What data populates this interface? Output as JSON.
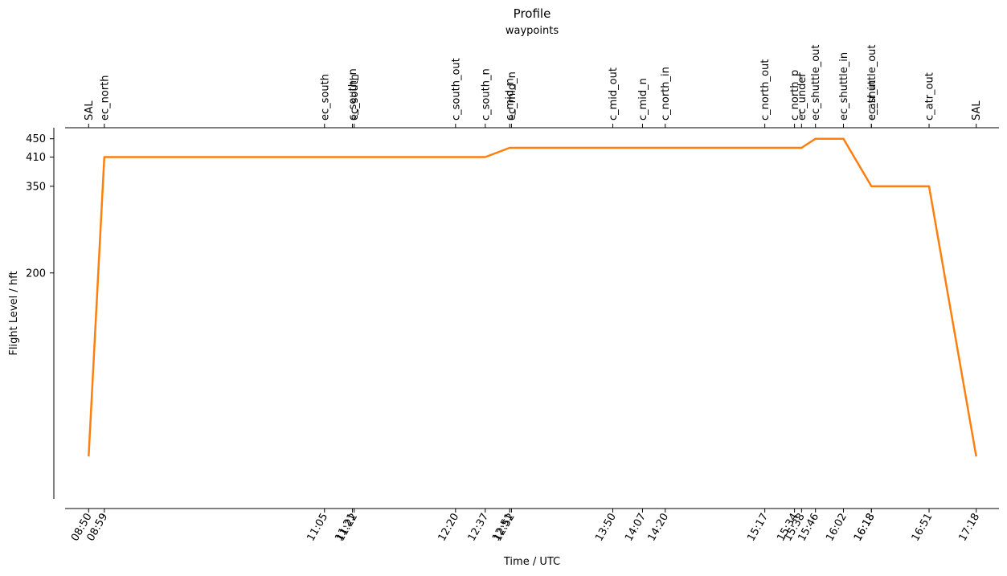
{
  "chart_data": {
    "type": "line",
    "title": "Profile",
    "subtitle": "waypoints",
    "xlabel": "Time / UTC",
    "ylabel": "Flight Level / hft",
    "y_ticks": [
      200,
      350,
      410,
      450
    ],
    "ylim": [
      5,
      475
    ],
    "xlim": [
      "08:37",
      "17:31"
    ],
    "series_color": "#ff7f0e",
    "waypoints": [
      {
        "name": "SAL",
        "time": "08:50"
      },
      {
        "name": "ec_north",
        "time": "08:59"
      },
      {
        "name": "ec_south",
        "time": "11:05"
      },
      {
        "name": "c_south_n",
        "time": "11:21"
      },
      {
        "name": "ec_south",
        "time": "11:22"
      },
      {
        "name": "c_south_out",
        "time": "12:20"
      },
      {
        "name": "c_south_n",
        "time": "12:37"
      },
      {
        "name": "c_mid_n",
        "time": "12:51"
      },
      {
        "name": "ec_mid_n",
        "time": "12:52"
      },
      {
        "name": "c_mid_out",
        "time": "13:50"
      },
      {
        "name": "c_mid_n",
        "time": "14:07"
      },
      {
        "name": "c_north_in",
        "time": "14:20"
      },
      {
        "name": "c_north_out",
        "time": "15:17"
      },
      {
        "name": "c_north_p",
        "time": "15:34"
      },
      {
        "name": "ec_under",
        "time": "15:38"
      },
      {
        "name": "ec_shuttle_out",
        "time": "15:46"
      },
      {
        "name": "ec_shuttle_in",
        "time": "16:02"
      },
      {
        "name": "ec_shuttle_out",
        "time": "16:18"
      },
      {
        "name": "c_atr_in",
        "time": "16:18"
      },
      {
        "name": "c_atr_out",
        "time": "16:51"
      },
      {
        "name": "SAL",
        "time": "17:18"
      }
    ],
    "x": [
      "08:50",
      "08:59",
      "11:05",
      "11:21",
      "11:22",
      "12:20",
      "12:37",
      "12:51",
      "12:52",
      "13:50",
      "14:07",
      "14:20",
      "15:17",
      "15:34",
      "15:38",
      "15:46",
      "16:02",
      "16:18",
      "16:18",
      "16:51",
      "17:18"
    ],
    "y": [
      20,
      410,
      410,
      410,
      410,
      410,
      410,
      430,
      430,
      430,
      430,
      430,
      430,
      430,
      430,
      450,
      450,
      350,
      350,
      350,
      20
    ],
    "grid": false,
    "legend": "none"
  }
}
